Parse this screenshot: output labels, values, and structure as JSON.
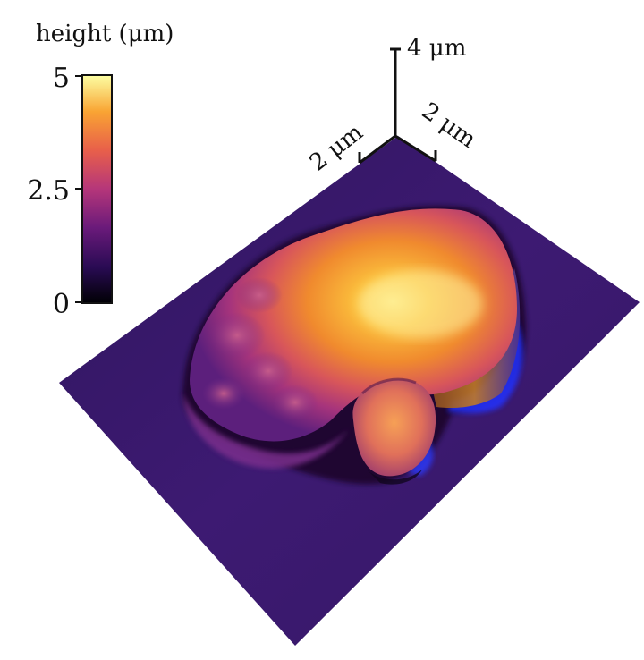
{
  "colorbar": {
    "title": "height (μm)",
    "ticks": [
      "5",
      "2.5",
      "0"
    ],
    "min": 0,
    "max": 5,
    "colormap": "inferno",
    "stops": [
      "#000004",
      "#2a0b54",
      "#6a1a7a",
      "#b5367a",
      "#e85f4a",
      "#f9a433",
      "#fcffa4"
    ]
  },
  "scale_axes": {
    "vertical": "4 μm",
    "left": "2 μm",
    "right": "2 μm"
  },
  "surface": {
    "substrate_color": "#3a1a6e",
    "edge_highlight_color": "#2233ff"
  }
}
